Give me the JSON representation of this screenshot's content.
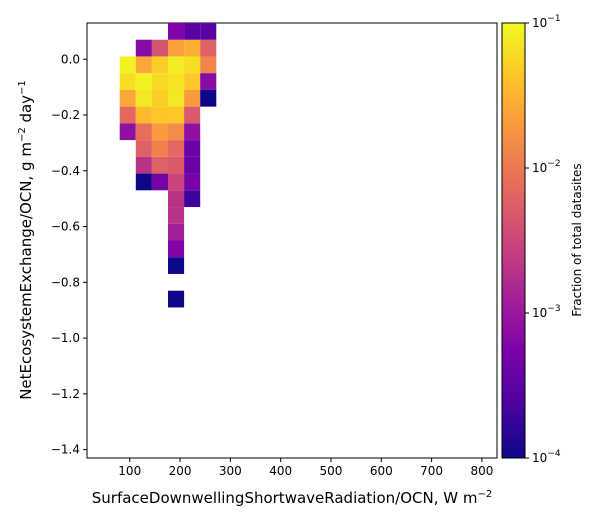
{
  "chart_data": {
    "type": "heatmap",
    "title": "",
    "xlabel": "SurfaceDownwellingShortwaveRadiation/OCN,  W m",
    "xlabel_sup": "−2",
    "ylabel": "NetEcosystemExchange/OCN,  g m",
    "ylabel_sup1": "−2",
    "ylabel_mid": " day",
    "ylabel_sup2": "−1",
    "xlim": [
      15,
      830
    ],
    "ylim": [
      -1.43,
      0.13
    ],
    "xticks": [
      100,
      200,
      300,
      400,
      500,
      600,
      700,
      800
    ],
    "xtick_labels": [
      "100",
      "200",
      "300",
      "400",
      "500",
      "600",
      "700",
      "800"
    ],
    "yticks": [
      0.0,
      -0.2,
      -0.4,
      -0.6,
      -0.8,
      -1.0,
      -1.2,
      -1.4
    ],
    "ytick_labels": [
      "0.0",
      "−0.2",
      "−0.4",
      "−0.6",
      "−0.8",
      "−1.0",
      "−1.2",
      "−1.4"
    ],
    "bin_width_x": 32,
    "bin_height_y": 0.06,
    "colormap": "plasma",
    "colorbar": {
      "label": "Fraction of total datasites",
      "scale": "log",
      "range": [
        0.0001,
        0.1
      ],
      "tick_values": [
        0.1,
        0.01,
        0.001,
        0.0001
      ],
      "tick_base": [
        "10",
        "10",
        "10",
        "10"
      ],
      "tick_exp": [
        "−1",
        "−2",
        "−3",
        "−4"
      ]
    },
    "cells": [
      {
        "x": 128,
        "y": 0.04,
        "v": 0.0007
      },
      {
        "x": 160,
        "y": 0.04,
        "v": 0.0045
      },
      {
        "x": 192,
        "y": 0.04,
        "v": 0.022
      },
      {
        "x": 224,
        "y": 0.04,
        "v": 0.03
      },
      {
        "x": 256,
        "y": 0.04,
        "v": 0.006
      },
      {
        "x": 192,
        "y": 0.1,
        "v": 0.0006
      },
      {
        "x": 224,
        "y": 0.1,
        "v": 0.0003
      },
      {
        "x": 256,
        "y": 0.1,
        "v": 0.0003
      },
      {
        "x": 96,
        "y": -0.02,
        "v": 0.09
      },
      {
        "x": 128,
        "y": -0.02,
        "v": 0.025
      },
      {
        "x": 160,
        "y": -0.02,
        "v": 0.05
      },
      {
        "x": 192,
        "y": -0.02,
        "v": 0.08
      },
      {
        "x": 224,
        "y": -0.02,
        "v": 0.065
      },
      {
        "x": 256,
        "y": -0.02,
        "v": 0.013
      },
      {
        "x": 96,
        "y": -0.08,
        "v": 0.065
      },
      {
        "x": 128,
        "y": -0.08,
        "v": 0.09
      },
      {
        "x": 160,
        "y": -0.08,
        "v": 0.06
      },
      {
        "x": 192,
        "y": -0.08,
        "v": 0.07
      },
      {
        "x": 224,
        "y": -0.08,
        "v": 0.045
      },
      {
        "x": 256,
        "y": -0.08,
        "v": 0.0007
      },
      {
        "x": 96,
        "y": -0.14,
        "v": 0.025
      },
      {
        "x": 128,
        "y": -0.14,
        "v": 0.075
      },
      {
        "x": 160,
        "y": -0.14,
        "v": 0.05
      },
      {
        "x": 192,
        "y": -0.14,
        "v": 0.075
      },
      {
        "x": 224,
        "y": -0.14,
        "v": 0.02
      },
      {
        "x": 256,
        "y": -0.14,
        "v": 0.0001
      },
      {
        "x": 96,
        "y": -0.2,
        "v": 0.007
      },
      {
        "x": 128,
        "y": -0.2,
        "v": 0.035
      },
      {
        "x": 160,
        "y": -0.2,
        "v": 0.045
      },
      {
        "x": 192,
        "y": -0.2,
        "v": 0.045
      },
      {
        "x": 224,
        "y": -0.2,
        "v": 0.005
      },
      {
        "x": 96,
        "y": -0.26,
        "v": 0.0008
      },
      {
        "x": 128,
        "y": -0.26,
        "v": 0.008
      },
      {
        "x": 160,
        "y": -0.26,
        "v": 0.02
      },
      {
        "x": 192,
        "y": -0.26,
        "v": 0.015
      },
      {
        "x": 224,
        "y": -0.26,
        "v": 0.0008
      },
      {
        "x": 128,
        "y": -0.32,
        "v": 0.006
      },
      {
        "x": 160,
        "y": -0.32,
        "v": 0.012
      },
      {
        "x": 192,
        "y": -0.32,
        "v": 0.007
      },
      {
        "x": 224,
        "y": -0.32,
        "v": 0.0004
      },
      {
        "x": 128,
        "y": -0.38,
        "v": 0.002
      },
      {
        "x": 160,
        "y": -0.38,
        "v": 0.006
      },
      {
        "x": 192,
        "y": -0.38,
        "v": 0.005
      },
      {
        "x": 224,
        "y": -0.38,
        "v": 0.0004
      },
      {
        "x": 128,
        "y": -0.44,
        "v": 0.0001
      },
      {
        "x": 160,
        "y": -0.44,
        "v": 0.0005
      },
      {
        "x": 192,
        "y": -0.44,
        "v": 0.003
      },
      {
        "x": 224,
        "y": -0.44,
        "v": 0.0005
      },
      {
        "x": 192,
        "y": -0.5,
        "v": 0.002
      },
      {
        "x": 224,
        "y": -0.5,
        "v": 0.0002
      },
      {
        "x": 192,
        "y": -0.56,
        "v": 0.002
      },
      {
        "x": 192,
        "y": -0.62,
        "v": 0.0012
      },
      {
        "x": 192,
        "y": -0.68,
        "v": 0.0006
      },
      {
        "x": 192,
        "y": -0.74,
        "v": 0.0001
      },
      {
        "x": 192,
        "y": -0.86,
        "v": 0.0001
      }
    ]
  }
}
